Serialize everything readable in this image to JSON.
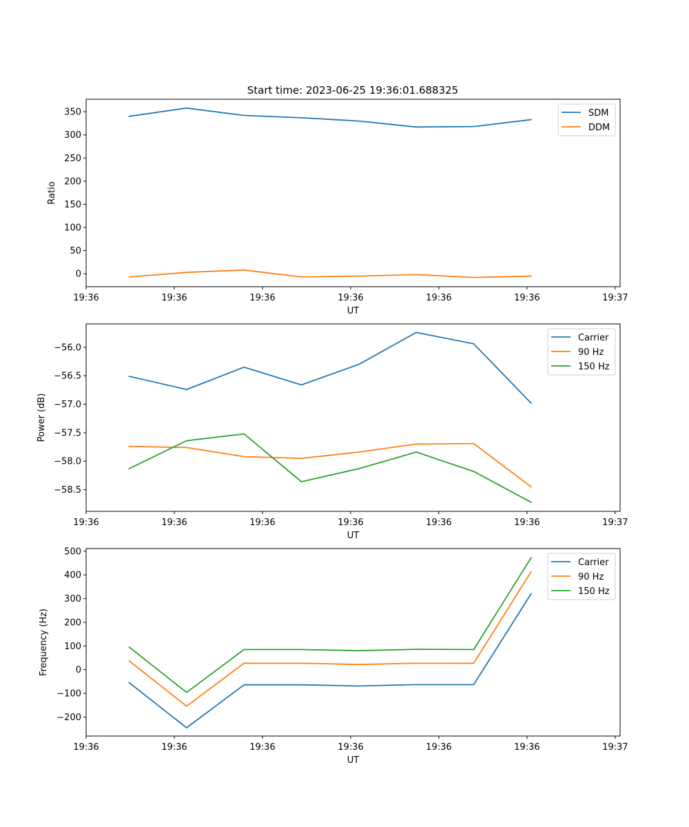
{
  "figure": {
    "title": "Start time: 2023-06-25 19:36:01.688325"
  },
  "chart_data": [
    {
      "type": "line",
      "title": "Start time: 2023-06-25 19:36:01.688325",
      "xlabel": "UT",
      "ylabel": "Ratio",
      "x": [
        0,
        1,
        2,
        3,
        4,
        5,
        6,
        7
      ],
      "x_tick_labels": [
        "19:36",
        "19:36",
        "19:36",
        "19:36",
        "19:36",
        "19:36",
        "19:37"
      ],
      "ylim": [
        -28,
        377
      ],
      "yticks": [
        0,
        50,
        100,
        150,
        200,
        250,
        300,
        350
      ],
      "legend": "top-right",
      "series": [
        {
          "name": "SDM",
          "color": "#1f77b4",
          "values": [
            340,
            358,
            342,
            337,
            330,
            317,
            318,
            333
          ]
        },
        {
          "name": "DDM",
          "color": "#ff7f0e",
          "values": [
            -7,
            3,
            8,
            -7,
            -5,
            -2,
            -8,
            -5
          ]
        }
      ]
    },
    {
      "type": "line",
      "title": "",
      "xlabel": "UT",
      "ylabel": "Power (dB)",
      "x": [
        0,
        1,
        2,
        3,
        4,
        5,
        6,
        7
      ],
      "x_tick_labels": [
        "19:36",
        "19:36",
        "19:36",
        "19:36",
        "19:36",
        "19:36",
        "19:37"
      ],
      "ylim": [
        -58.88,
        -55.59
      ],
      "yticks": [
        -58.5,
        -58.0,
        -57.5,
        -57.0,
        -56.5,
        -56.0
      ],
      "legend": "top-right",
      "series": [
        {
          "name": "Carrier",
          "color": "#1f77b4",
          "values": [
            -56.51,
            -56.74,
            -56.35,
            -56.66,
            -56.3,
            -55.74,
            -55.94,
            -56.98
          ]
        },
        {
          "name": "90 Hz",
          "color": "#ff7f0e",
          "values": [
            -57.74,
            -57.76,
            -57.92,
            -57.95,
            -57.84,
            -57.7,
            -57.69,
            -58.45
          ]
        },
        {
          "name": "150 Hz",
          "color": "#2ca02c",
          "values": [
            -58.13,
            -57.64,
            -57.52,
            -58.36,
            -58.13,
            -57.84,
            -58.18,
            -58.72
          ]
        }
      ]
    },
    {
      "type": "line",
      "title": "",
      "xlabel": "UT",
      "ylabel": "Frequency (Hz)",
      "x": [
        0,
        1,
        2,
        3,
        4,
        5,
        6,
        7
      ],
      "x_tick_labels": [
        "19:36",
        "19:36",
        "19:36",
        "19:36",
        "19:36",
        "19:36",
        "19:37"
      ],
      "ylim": [
        -280,
        511
      ],
      "yticks": [
        -200,
        -100,
        0,
        100,
        200,
        300,
        400,
        500
      ],
      "legend": "top-right",
      "series": [
        {
          "name": "Carrier",
          "color": "#1f77b4",
          "values": [
            -55,
            -245,
            -64,
            -64,
            -69,
            -63,
            -63,
            320
          ]
        },
        {
          "name": "90 Hz",
          "color": "#ff7f0e",
          "values": [
            37,
            -154,
            27,
            27,
            22,
            27,
            27,
            413
          ]
        },
        {
          "name": "150 Hz",
          "color": "#2ca02c",
          "values": [
            95,
            -96,
            85,
            85,
            80,
            86,
            85,
            472
          ]
        }
      ]
    }
  ]
}
